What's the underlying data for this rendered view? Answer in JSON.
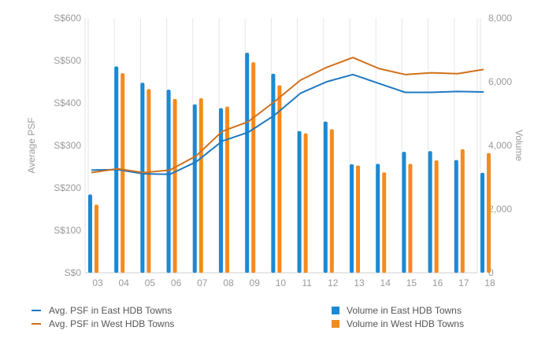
{
  "chart_data": {
    "type": "bar+line",
    "categories": [
      "03",
      "04",
      "05",
      "06",
      "07",
      "08",
      "09",
      "10",
      "11",
      "12",
      "13",
      "14",
      "15",
      "16",
      "17",
      "18"
    ],
    "y_left": {
      "label": "Average PSF",
      "ticks": [
        "S$0",
        "S$100",
        "S$200",
        "S$300",
        "S$400",
        "S$500",
        "S$600"
      ],
      "range": [
        0,
        600
      ]
    },
    "y_right": {
      "label": "Volume",
      "ticks": [
        "0",
        "2,000",
        "4,000",
        "6,000",
        "8,000"
      ],
      "range": [
        0,
        8000
      ]
    },
    "bars": [
      {
        "name": "Volume in East HDB Towns",
        "color": "#1a8ad4",
        "values": [
          2460,
          6480,
          5970,
          5750,
          5290,
          5170,
          6910,
          6250,
          4450,
          4750,
          3410,
          3420,
          3800,
          3820,
          3540,
          3140
        ]
      },
      {
        "name": "Volume in West HDB Towns",
        "color": "#f58a1f",
        "values": [
          2140,
          6270,
          5770,
          5460,
          5480,
          5220,
          6610,
          5890,
          4380,
          4510,
          3370,
          3150,
          3420,
          3530,
          3880,
          3760
        ]
      }
    ],
    "lines": [
      {
        "name": "Avg. PSF in East HDB Towns",
        "color": "#1e78c2",
        "values": [
          242,
          243,
          233,
          232,
          261,
          310,
          331,
          371,
          423,
          450,
          467,
          446,
          425,
          425,
          427,
          426
        ]
      },
      {
        "name": "Avg. PSF in West HDB Towns",
        "color": "#d0701c",
        "values": [
          236,
          245,
          236,
          242,
          275,
          333,
          356,
          403,
          454,
          484,
          507,
          481,
          467,
          471,
          469,
          479
        ]
      }
    ],
    "grid": "vertical",
    "legend_position": "bottom"
  },
  "legend": {
    "line_east": "Avg. PSF in East HDB Towns",
    "line_west": "Avg. PSF in West HDB Towns",
    "bar_east": "Volume in East HDB Towns",
    "bar_west": "Volume in West HDB Towns"
  },
  "colors": {
    "east_bar": "#1a8ad4",
    "west_bar": "#f58a1f",
    "east_line": "#1e78c2",
    "west_line": "#d0701c"
  }
}
